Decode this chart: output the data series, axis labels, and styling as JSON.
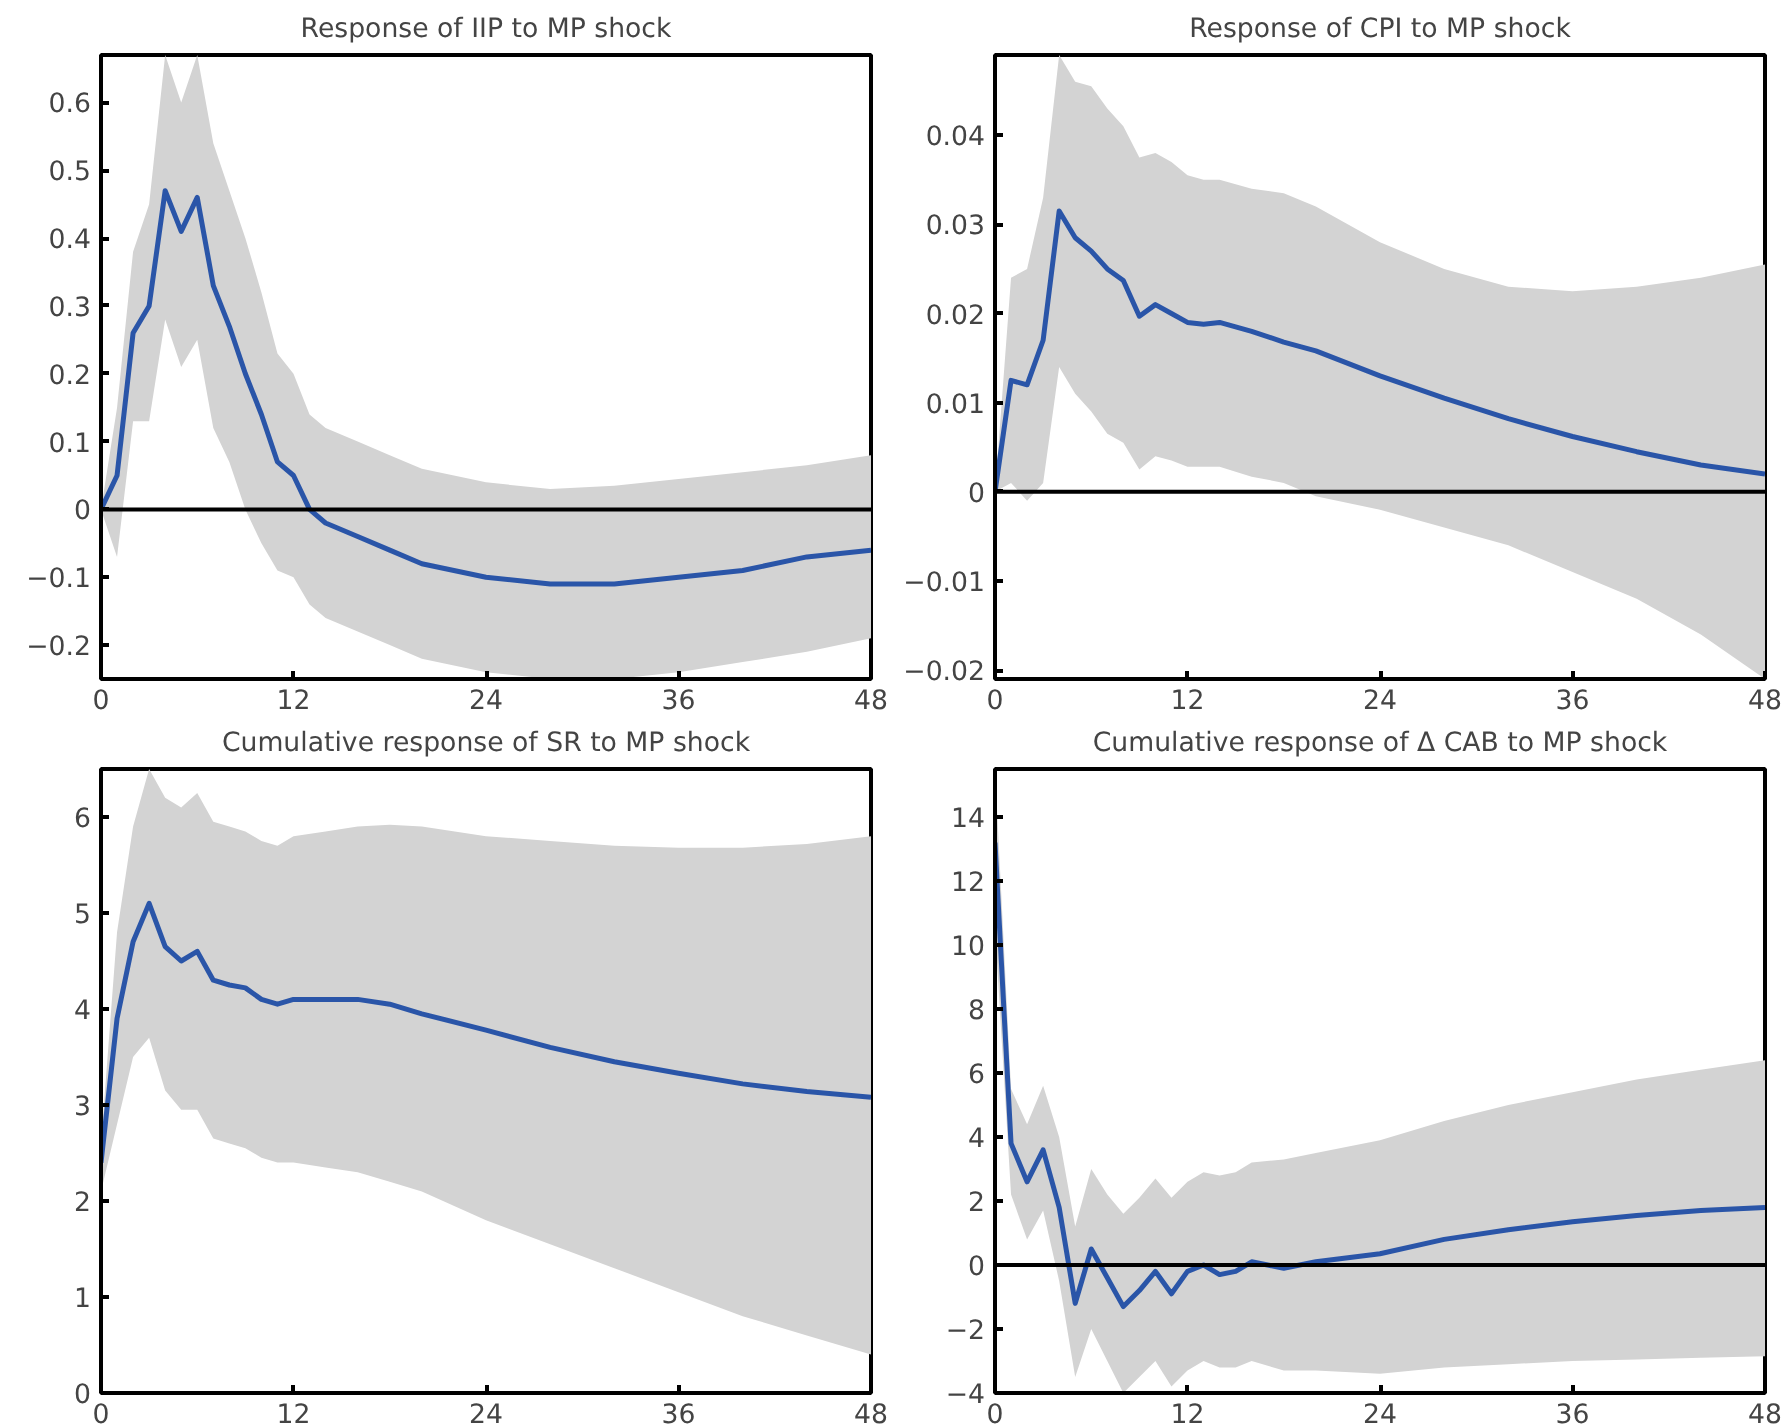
{
  "chart_data": [
    {
      "type": "line",
      "title": "Response of IIP to MP shock",
      "xlim": [
        0,
        48
      ],
      "xticks": [
        0,
        12,
        24,
        36,
        48
      ],
      "ylim": [
        -0.25,
        0.67
      ],
      "yticks": [
        -0.2,
        -0.1,
        0,
        0.1,
        0.2,
        0.3,
        0.4,
        0.5,
        0.6
      ],
      "grid": false,
      "ref_lines": [
        {
          "axis": "y",
          "value": 0,
          "color": "#000000"
        }
      ],
      "series": [
        {
          "color": "#2a55a8",
          "x": [
            0,
            1,
            2,
            3,
            4,
            5,
            6,
            7,
            8,
            9,
            10,
            11,
            12,
            13,
            14,
            16,
            18,
            20,
            24,
            28,
            32,
            36,
            40,
            44,
            48
          ],
          "values": [
            0,
            0.05,
            0.26,
            0.3,
            0.47,
            0.41,
            0.46,
            0.33,
            0.27,
            0.2,
            0.14,
            0.07,
            0.05,
            0.0,
            -0.02,
            -0.04,
            -0.06,
            -0.08,
            -0.1,
            -0.11,
            -0.11,
            -0.1,
            -0.09,
            -0.07,
            -0.06
          ],
          "upper": [
            0,
            0.15,
            0.38,
            0.45,
            0.67,
            0.6,
            0.67,
            0.54,
            0.47,
            0.4,
            0.32,
            0.23,
            0.2,
            0.14,
            0.12,
            0.1,
            0.08,
            0.06,
            0.04,
            0.03,
            0.035,
            0.045,
            0.055,
            0.065,
            0.08
          ],
          "lower": [
            0,
            -0.07,
            0.13,
            0.13,
            0.28,
            0.21,
            0.25,
            0.12,
            0.07,
            0.0,
            -0.05,
            -0.09,
            -0.1,
            -0.14,
            -0.16,
            -0.18,
            -0.2,
            -0.22,
            -0.24,
            -0.25,
            -0.25,
            -0.24,
            -0.225,
            -0.21,
            -0.19
          ]
        }
      ]
    },
    {
      "type": "line",
      "title": "Response of CPI to MP shock",
      "xlim": [
        0,
        48
      ],
      "xticks": [
        0,
        12,
        24,
        36,
        48
      ],
      "ylim": [
        -0.021,
        0.049
      ],
      "yticks": [
        -0.02,
        -0.01,
        0,
        0.01,
        0.02,
        0.03,
        0.04
      ],
      "grid": false,
      "ref_lines": [
        {
          "axis": "y",
          "value": 0,
          "color": "#000000"
        }
      ],
      "series": [
        {
          "color": "#2a55a8",
          "x": [
            0,
            1,
            2,
            3,
            4,
            5,
            6,
            7,
            8,
            9,
            10,
            11,
            12,
            13,
            14,
            16,
            18,
            20,
            24,
            28,
            32,
            36,
            40,
            44,
            48
          ],
          "values": [
            0,
            0.0125,
            0.012,
            0.017,
            0.0315,
            0.0285,
            0.027,
            0.025,
            0.0237,
            0.0197,
            0.021,
            0.02,
            0.019,
            0.0188,
            0.019,
            0.018,
            0.0168,
            0.0158,
            0.013,
            0.0105,
            0.0082,
            0.0062,
            0.0045,
            0.003,
            0.002
          ],
          "upper": [
            0,
            0.024,
            0.025,
            0.033,
            0.049,
            0.046,
            0.0455,
            0.043,
            0.041,
            0.0375,
            0.038,
            0.037,
            0.0355,
            0.035,
            0.035,
            0.034,
            0.0335,
            0.032,
            0.028,
            0.025,
            0.023,
            0.0225,
            0.023,
            0.024,
            0.0255
          ],
          "lower": [
            0,
            0.001,
            -0.001,
            0.001,
            0.014,
            0.011,
            0.009,
            0.0065,
            0.0055,
            0.0025,
            0.004,
            0.0035,
            0.0028,
            0.0028,
            0.0028,
            0.0017,
            0.001,
            -0.0005,
            -0.002,
            -0.004,
            -0.006,
            -0.009,
            -0.012,
            -0.016,
            -0.021
          ]
        }
      ]
    },
    {
      "type": "line",
      "title": "Cumulative response of SR to MP shock",
      "xlim": [
        0,
        48
      ],
      "xticks": [
        0,
        12,
        24,
        36,
        48
      ],
      "ylim": [
        0,
        6.5
      ],
      "yticks": [
        0,
        1,
        2,
        3,
        4,
        5,
        6
      ],
      "grid": false,
      "series": [
        {
          "color": "#2a55a8",
          "x": [
            0,
            1,
            2,
            3,
            4,
            5,
            6,
            7,
            8,
            9,
            10,
            11,
            12,
            14,
            16,
            18,
            20,
            24,
            28,
            32,
            36,
            40,
            44,
            48
          ],
          "values": [
            2.4,
            3.9,
            4.7,
            5.1,
            4.65,
            4.5,
            4.6,
            4.3,
            4.25,
            4.22,
            4.1,
            4.05,
            4.1,
            4.1,
            4.1,
            4.05,
            3.95,
            3.78,
            3.6,
            3.45,
            3.33,
            3.22,
            3.14,
            3.08
          ],
          "upper": [
            2.6,
            4.8,
            5.9,
            6.5,
            6.2,
            6.1,
            6.25,
            5.95,
            5.9,
            5.85,
            5.75,
            5.7,
            5.8,
            5.85,
            5.9,
            5.92,
            5.9,
            5.8,
            5.75,
            5.7,
            5.68,
            5.68,
            5.72,
            5.8
          ],
          "lower": [
            2.1,
            2.8,
            3.5,
            3.7,
            3.15,
            2.95,
            2.95,
            2.65,
            2.6,
            2.55,
            2.45,
            2.4,
            2.4,
            2.35,
            2.3,
            2.2,
            2.1,
            1.8,
            1.55,
            1.3,
            1.05,
            0.8,
            0.6,
            0.4
          ]
        }
      ]
    },
    {
      "type": "line",
      "title": "Cumulative response of Δ CAB to MP shock",
      "xlim": [
        0,
        48
      ],
      "xticks": [
        0,
        12,
        24,
        36,
        48
      ],
      "ylim": [
        -4,
        15.5
      ],
      "yticks": [
        -4,
        -2,
        0,
        2,
        4,
        6,
        8,
        10,
        12,
        14
      ],
      "grid": false,
      "ref_lines": [
        {
          "axis": "y",
          "value": 0,
          "color": "#000000"
        }
      ],
      "series": [
        {
          "color": "#2a55a8",
          "x": [
            0,
            1,
            2,
            3,
            4,
            5,
            6,
            7,
            8,
            9,
            10,
            11,
            12,
            13,
            14,
            15,
            16,
            18,
            20,
            24,
            28,
            32,
            36,
            40,
            44,
            48
          ],
          "values": [
            13.2,
            3.8,
            2.6,
            3.6,
            1.8,
            -1.2,
            0.5,
            -0.4,
            -1.3,
            -0.8,
            -0.2,
            -0.9,
            -0.2,
            0.0,
            -0.3,
            -0.2,
            0.1,
            -0.1,
            0.1,
            0.35,
            0.8,
            1.1,
            1.35,
            1.55,
            1.7,
            1.8
          ],
          "upper": [
            15.5,
            5.5,
            4.4,
            5.6,
            4.0,
            1.2,
            3.0,
            2.2,
            1.6,
            2.1,
            2.7,
            2.1,
            2.6,
            2.9,
            2.8,
            2.9,
            3.2,
            3.3,
            3.5,
            3.9,
            4.5,
            5.0,
            5.4,
            5.8,
            6.1,
            6.4
          ],
          "lower": [
            10.5,
            2.2,
            0.8,
            1.7,
            -0.5,
            -3.5,
            -2.0,
            -3.0,
            -4.0,
            -3.5,
            -3.0,
            -3.8,
            -3.3,
            -3.0,
            -3.2,
            -3.2,
            -3.0,
            -3.3,
            -3.3,
            -3.4,
            -3.2,
            -3.1,
            -3.0,
            -2.95,
            -2.9,
            -2.85
          ]
        }
      ]
    }
  ]
}
